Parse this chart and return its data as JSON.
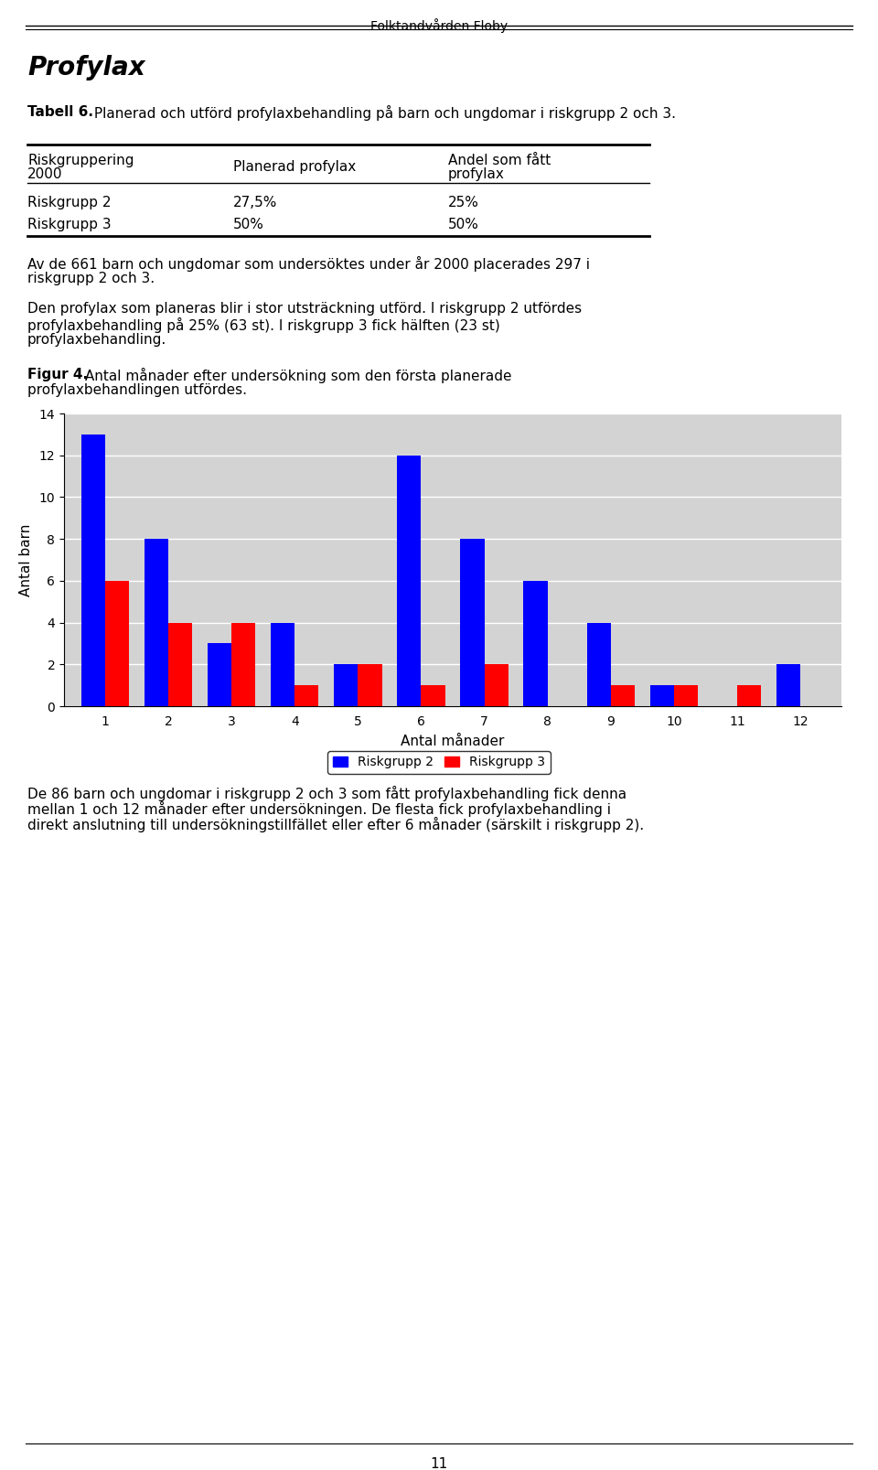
{
  "header_title": "Folktandvården Floby",
  "section_title": "Profylax",
  "tabell_label": "Tabell 6.",
  "tabell_text": " Planerad och utförd profylaxbehandling på barn och ungdomar i riskgrupp 2 och 3.",
  "table_col0_header_line1": "Riskgruppering",
  "table_col0_header_line2": "2000",
  "table_col1_header": "Planerad profylax",
  "table_col2_header_line1": "Andel som fått",
  "table_col2_header_line2": "profylax",
  "table_rows": [
    [
      "Riskgrupp 2",
      "27,5%",
      "25%"
    ],
    [
      "Riskgrupp 3",
      "50%",
      "50%"
    ]
  ],
  "paragraph1_line1": "Av de 661 barn och ungdomar som undersöktes under år 2000 placerades 297 i",
  "paragraph1_line2": "riskgrupp 2 och 3.",
  "paragraph2_line1": "Den profylax som planeras blir i stor utsträckning utförd. I riskgrupp 2 utfördes",
  "paragraph2_line2": "profylaxbehandling på 25% (63 st). I riskgrupp 3 fick hälften (23 st)",
  "paragraph2_line3": "profylaxbehandling.",
  "figur_label": "Figur 4.",
  "figur_text_line1": " Antal månader efter undersökning som den första planerade",
  "figur_text_line2": "profylaxbehandlingen utfördes.",
  "xlabel": "Antal månader",
  "ylabel": "Antal barn",
  "ylim": [
    0,
    14
  ],
  "yticks": [
    0,
    2,
    4,
    6,
    8,
    10,
    12,
    14
  ],
  "months": [
    1,
    2,
    3,
    4,
    5,
    6,
    7,
    8,
    9,
    10,
    11,
    12
  ],
  "riskgrupp2": [
    13,
    8,
    3,
    4,
    2,
    12,
    8,
    6,
    4,
    1,
    0,
    2
  ],
  "riskgrupp3": [
    6,
    4,
    4,
    1,
    2,
    1,
    2,
    0,
    1,
    1,
    1,
    0
  ],
  "color_riskgrupp2": "#0000FF",
  "color_riskgrupp3": "#FF0000",
  "legend_riskgrupp2": "Riskgrupp 2",
  "legend_riskgrupp3": "Riskgrupp 3",
  "paragraph3_line1": "De 86 barn och ungdomar i riskgrupp 2 och 3 som fått profylaxbehandling fick denna",
  "paragraph3_line2": "mellan 1 och 12 månader efter undersökningen. De flesta fick profylaxbehandling i",
  "paragraph3_line3": "direkt anslutning till undersökningstillfället eller efter 6 månader (särskilt i riskgrupp 2).",
  "footer_page": "11",
  "chart_bg": "#d3d3d3",
  "bar_width": 0.38
}
